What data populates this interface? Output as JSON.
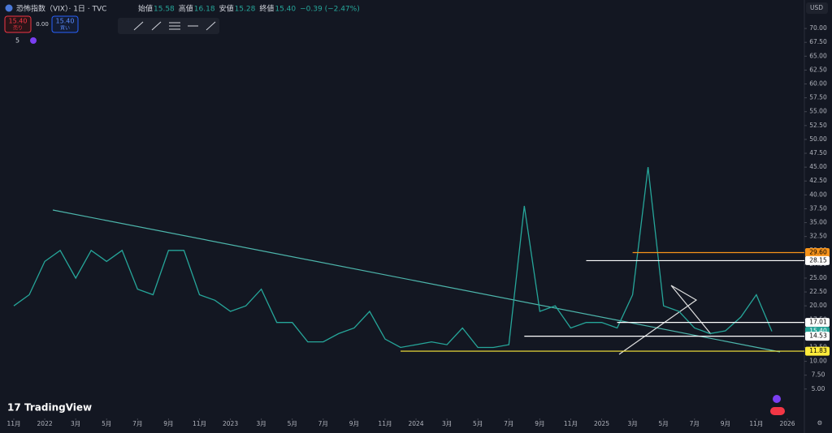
{
  "header": {
    "symbol": "恐怖指数（VIX）· 1日 · TVC",
    "ohlc": [
      {
        "label": "始値",
        "value": "15.58"
      },
      {
        "label": "高値",
        "value": "16.18"
      },
      {
        "label": "安値",
        "value": "15.28"
      },
      {
        "label": "終値",
        "value": "15.40"
      }
    ],
    "change": "−0.39 (−2.47%)",
    "sell": {
      "price": "15.40",
      "label": "売り"
    },
    "spread": "0.00",
    "buy": {
      "price": "15.40",
      "label": "買い"
    },
    "indicators": "5",
    "currency": "USD",
    "logo": "TradingView"
  },
  "chart_data": {
    "type": "line",
    "color": "#26a69a",
    "x": [
      "2021-11",
      "2021-12",
      "2022-01",
      "2022-02",
      "2022-03",
      "2022-04",
      "2022-05",
      "2022-06",
      "2022-07",
      "2022-08",
      "2022-09",
      "2022-10",
      "2022-11",
      "2022-12",
      "2023-01",
      "2023-02",
      "2023-03",
      "2023-04",
      "2023-05",
      "2023-06",
      "2023-07",
      "2023-08",
      "2023-09",
      "2023-10",
      "2023-11",
      "2023-12",
      "2024-01",
      "2024-02",
      "2024-03",
      "2024-04",
      "2024-05",
      "2024-06",
      "2024-07",
      "2024-08",
      "2024-09",
      "2024-10",
      "2024-11",
      "2024-12",
      "2025-01",
      "2025-02",
      "2025-03",
      "2025-04",
      "2025-05",
      "2025-06",
      "2025-07",
      "2025-08",
      "2025-09",
      "2025-10",
      "2025-11",
      "2025-12"
    ],
    "series": [
      {
        "name": "VIX",
        "color": "#26a69a",
        "values": [
          20,
          22,
          28,
          30,
          25,
          30,
          28,
          30,
          23,
          22,
          30,
          30,
          22,
          21,
          19,
          20,
          23,
          17,
          17,
          13.5,
          13.5,
          15,
          16,
          19,
          14,
          12.5,
          13,
          13.5,
          13,
          16,
          12.5,
          12.5,
          13,
          38,
          19,
          20,
          16,
          17,
          17,
          16,
          22,
          45,
          20,
          19,
          16,
          15,
          15.5,
          18,
          22,
          15.4
        ]
      }
    ],
    "ylim": [
      0,
      72.5
    ],
    "yticks": [
      {
        "value": 5,
        "label": "5.00"
      },
      {
        "value": 7.5,
        "label": "7.50"
      },
      {
        "value": 10,
        "label": "10.00"
      },
      {
        "value": 12.5,
        "label": "12.50"
      },
      {
        "value": 15,
        "label": "15.00"
      },
      {
        "value": 17.5,
        "label": "17.50"
      },
      {
        "value": 20,
        "label": "20.00"
      },
      {
        "value": 22.5,
        "label": "22.50"
      },
      {
        "value": 25,
        "label": "25.00"
      },
      {
        "value": 27.5,
        "label": "27.50"
      },
      {
        "value": 30,
        "label": "30.00"
      },
      {
        "value": 32.5,
        "label": "32.50"
      },
      {
        "value": 35,
        "label": "35.00"
      },
      {
        "value": 37.5,
        "label": "37.50"
      },
      {
        "value": 40,
        "label": "40.00"
      },
      {
        "value": 42.5,
        "label": "42.50"
      },
      {
        "value": 45,
        "label": "45.00"
      },
      {
        "value": 47.5,
        "label": "47.50"
      },
      {
        "value": 50,
        "label": "50.00"
      },
      {
        "value": 52.5,
        "label": "52.50"
      },
      {
        "value": 55,
        "label": "55.00"
      },
      {
        "value": 57.5,
        "label": "57.50"
      },
      {
        "value": 60,
        "label": "60.00"
      },
      {
        "value": 62.5,
        "label": "62.50"
      },
      {
        "value": 65,
        "label": "65.00"
      },
      {
        "value": 67.5,
        "label": "67.50"
      },
      {
        "value": 70,
        "label": "70.00"
      }
    ],
    "xticks": [
      {
        "value": "2021-11",
        "label": "11月"
      },
      {
        "value": "2022-01",
        "label": "2022"
      },
      {
        "value": "2022-03",
        "label": "3月"
      },
      {
        "value": "2022-05",
        "label": "5月"
      },
      {
        "value": "2022-07",
        "label": "7月"
      },
      {
        "value": "2022-09",
        "label": "9月"
      },
      {
        "value": "2022-11",
        "label": "11月"
      },
      {
        "value": "2023-01",
        "label": "2023"
      },
      {
        "value": "2023-03",
        "label": "3月"
      },
      {
        "value": "2023-05",
        "label": "5月"
      },
      {
        "value": "2023-07",
        "label": "7月"
      },
      {
        "value": "2023-09",
        "label": "9月"
      },
      {
        "value": "2023-11",
        "label": "11月"
      },
      {
        "value": "2024-01",
        "label": "2024"
      },
      {
        "value": "2024-03",
        "label": "3月"
      },
      {
        "value": "2024-05",
        "label": "5月"
      },
      {
        "value": "2024-07",
        "label": "7月"
      },
      {
        "value": "2024-09",
        "label": "9月"
      },
      {
        "value": "2024-11",
        "label": "11月"
      },
      {
        "value": "2025-01",
        "label": "2025"
      },
      {
        "value": "2025-03",
        "label": "3月"
      },
      {
        "value": "2025-05",
        "label": "5月"
      },
      {
        "value": "2025-07",
        "label": "7月"
      },
      {
        "value": "2025-09",
        "label": "9月"
      },
      {
        "value": "2025-11",
        "label": "11月"
      },
      {
        "value": "2026-01",
        "label": "2026"
      }
    ],
    "levels": [
      {
        "value": 29.6,
        "label": "29.60",
        "color": "#f7931a",
        "from": "2025-03"
      },
      {
        "value": 28.15,
        "label": "28.15",
        "color": "#ffffff",
        "from": "2024-12"
      },
      {
        "value": 17.01,
        "label": "17.01",
        "color": "#ffffff",
        "from": "2025-02"
      },
      {
        "value": 15.4,
        "label": "15.40",
        "color": "#26a69a"
      },
      {
        "value": 14.53,
        "label": "14.53",
        "color": "#ffffff",
        "from": "2024-08"
      },
      {
        "value": 11.83,
        "label": "11.83",
        "color": "#ffeb3b",
        "from": "2023-12"
      }
    ]
  }
}
